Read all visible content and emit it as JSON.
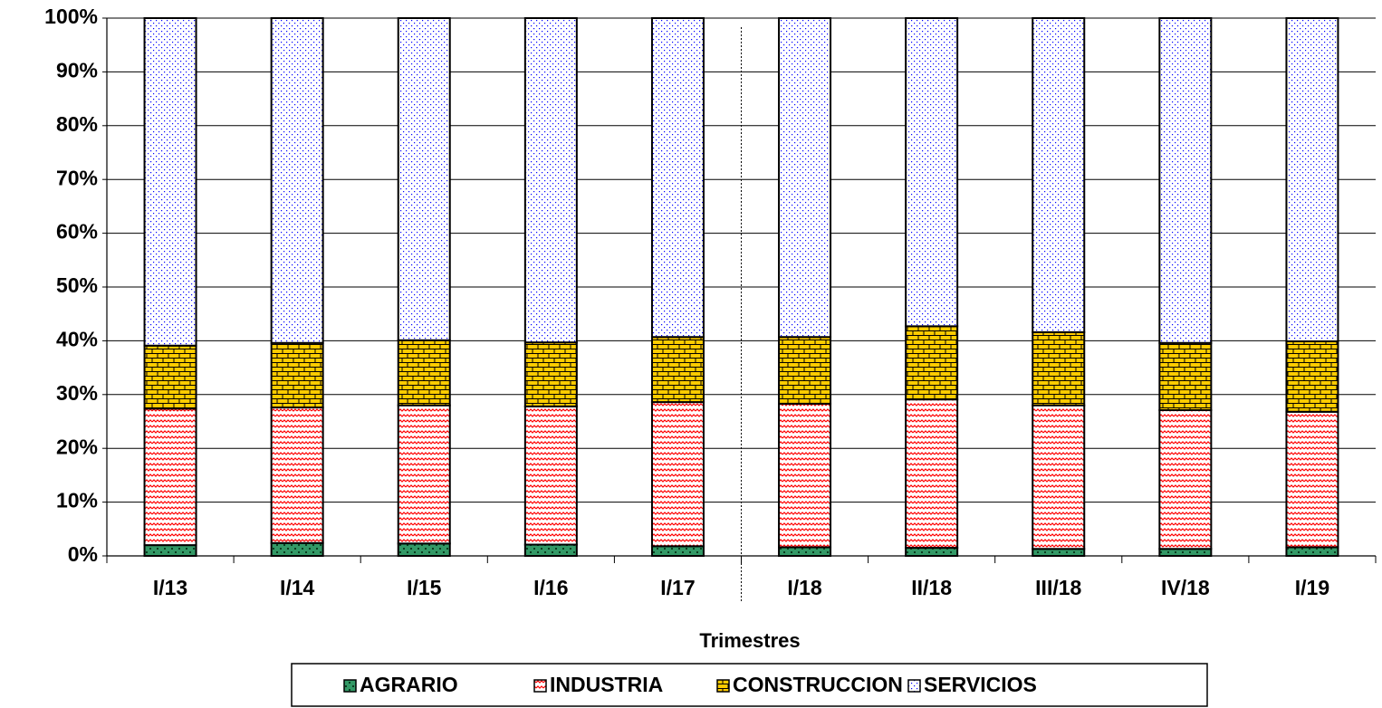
{
  "chart_data": {
    "type": "bar",
    "stacked": true,
    "x_label": "Trimestres",
    "categories": [
      "I/13",
      "I/14",
      "I/15",
      "I/16",
      "I/17",
      "I/18",
      "II/18",
      "III/18",
      "IV/18",
      "I/19"
    ],
    "series": [
      {
        "name": "AGRARIO",
        "color": "#339966",
        "pattern": "checker",
        "values": [
          2.0,
          2.4,
          2.3,
          2.1,
          1.8,
          1.6,
          1.5,
          1.3,
          1.3,
          1.6
        ]
      },
      {
        "name": "INDUSTRIA",
        "color": "#ff0000",
        "pattern": "zigzag",
        "values": [
          25.4,
          25.2,
          25.7,
          25.7,
          26.8,
          26.7,
          27.6,
          26.7,
          25.8,
          25.2
        ]
      },
      {
        "name": "CONSTRUCCION",
        "color": "#ffcc00",
        "pattern": "brick",
        "values": [
          11.7,
          12.0,
          12.1,
          11.9,
          12.1,
          12.4,
          13.6,
          13.6,
          12.5,
          13.1
        ]
      },
      {
        "name": "SERVICIOS",
        "color": "#0000ff",
        "pattern": "dots",
        "values": [
          60.9,
          60.4,
          59.9,
          60.3,
          59.3,
          59.3,
          57.3,
          58.4,
          60.4,
          60.1
        ]
      }
    ],
    "ylim": [
      0,
      100
    ],
    "yticks": [
      {
        "value": 0,
        "label": "0%"
      },
      {
        "value": 10,
        "label": "10%"
      },
      {
        "value": 20,
        "label": "20%"
      },
      {
        "value": 30,
        "label": "30%"
      },
      {
        "value": 40,
        "label": "40%"
      },
      {
        "value": 50,
        "label": "50%"
      },
      {
        "value": 60,
        "label": "60%"
      },
      {
        "value": 70,
        "label": "70%"
      },
      {
        "value": 80,
        "label": "80%"
      },
      {
        "value": 90,
        "label": "90%"
      },
      {
        "value": 100,
        "label": "100%"
      }
    ],
    "grid": true,
    "legend": "bottom"
  }
}
